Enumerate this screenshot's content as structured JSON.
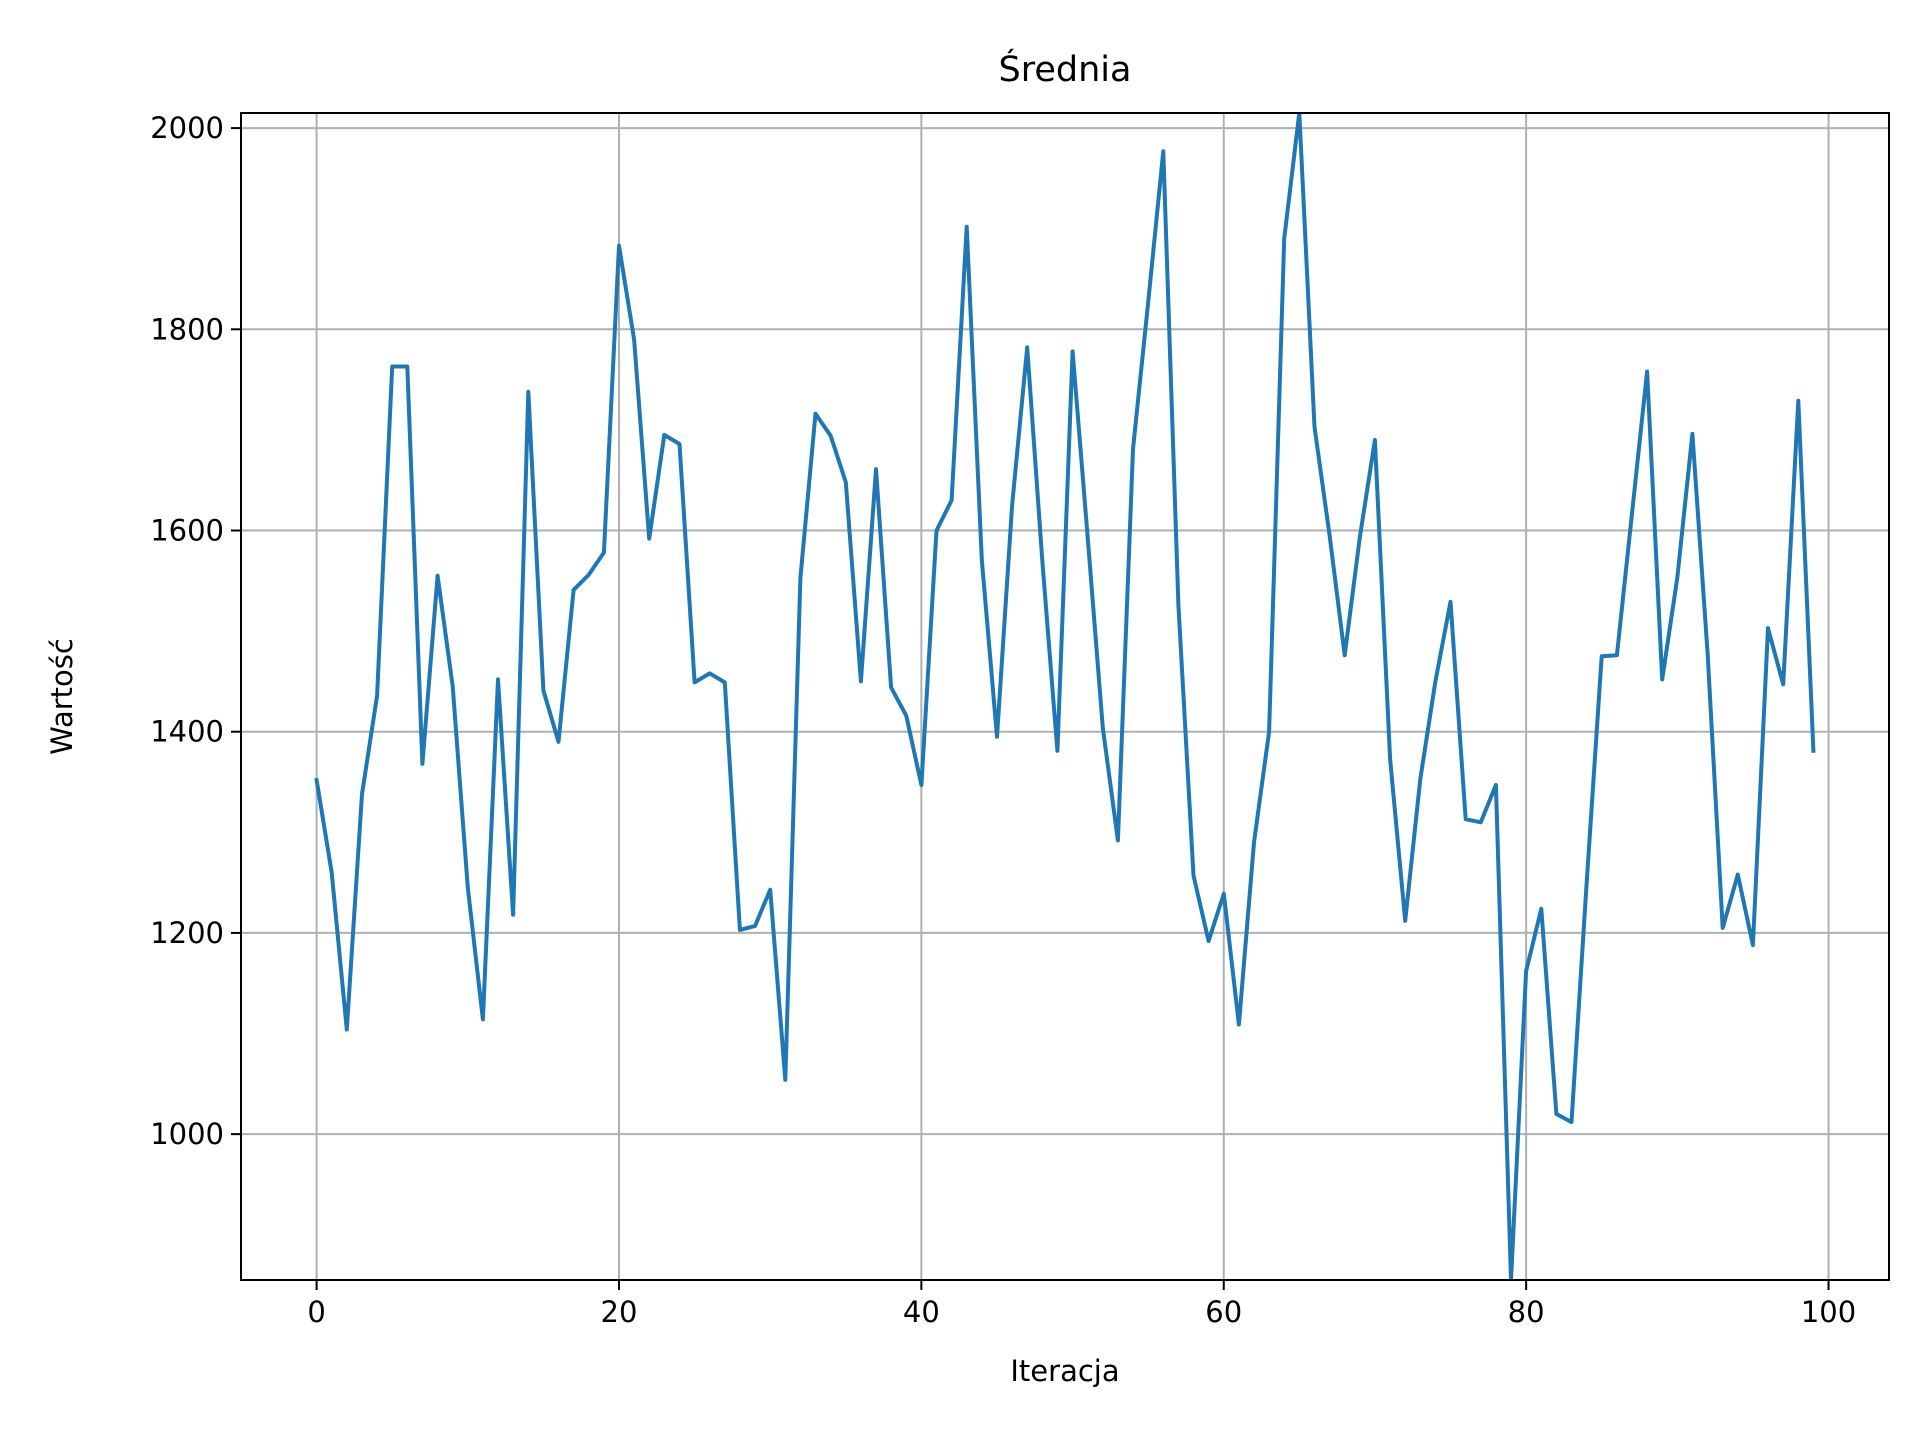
{
  "chart_data": {
    "type": "line",
    "title": "Średnia",
    "xlabel": "Iteracja",
    "ylabel": "Wartość",
    "xlim": [
      -5,
      104
    ],
    "ylim": [
      855,
      2015
    ],
    "xticks": [
      0,
      20,
      40,
      60,
      80,
      100
    ],
    "yticks": [
      1000,
      1200,
      1400,
      1600,
      1800,
      2000
    ],
    "grid": true,
    "series": [
      {
        "color": "#1f77b4",
        "x": [
          0,
          1,
          2,
          3,
          4,
          5,
          6,
          7,
          8,
          9,
          10,
          11,
          12,
          13,
          14,
          15,
          16,
          17,
          18,
          19,
          20,
          21,
          22,
          23,
          24,
          25,
          26,
          27,
          28,
          29,
          30,
          31,
          32,
          33,
          34,
          35,
          36,
          37,
          38,
          39,
          40,
          41,
          42,
          43,
          44,
          45,
          46,
          47,
          48,
          49,
          50,
          51,
          52,
          53,
          54,
          55,
          56,
          57,
          58,
          59,
          60,
          61,
          62,
          63,
          64,
          65,
          66,
          67,
          68,
          69,
          70,
          71,
          72,
          73,
          74,
          75,
          76,
          77,
          78,
          79,
          80,
          81,
          82,
          83,
          84,
          85,
          86,
          87,
          88,
          89,
          90,
          91,
          92,
          93,
          94,
          95,
          96,
          97,
          98,
          99
        ],
        "y": [
          1352,
          1260,
          1104,
          1338,
          1436,
          1763,
          1763,
          1368,
          1555,
          1445,
          1245,
          1114,
          1452,
          1218,
          1738,
          1441,
          1390,
          1541,
          1556,
          1578,
          1883,
          1790,
          1592,
          1695,
          1686,
          1449,
          1458,
          1449,
          1203,
          1207,
          1243,
          1054,
          1553,
          1716,
          1694,
          1648,
          1450,
          1661,
          1444,
          1416,
          1347,
          1600,
          1630,
          1902,
          1571,
          1395,
          1625,
          1782,
          1570,
          1381,
          1778,
          1593,
          1404,
          1292,
          1681,
          1827,
          1977,
          1526,
          1257,
          1192,
          1239,
          1109,
          1290,
          1400,
          1890,
          2015,
          1703,
          1595,
          1476,
          1593,
          1690,
          1373,
          1212,
          1353,
          1450,
          1529,
          1313,
          1310,
          1347,
          855,
          1162,
          1224,
          1020,
          1012,
          1249,
          1475,
          1476,
          1617,
          1758,
          1452,
          1553,
          1696,
          1478,
          1205,
          1258,
          1188,
          1503,
          1447,
          1729,
          1381
        ]
      }
    ]
  }
}
